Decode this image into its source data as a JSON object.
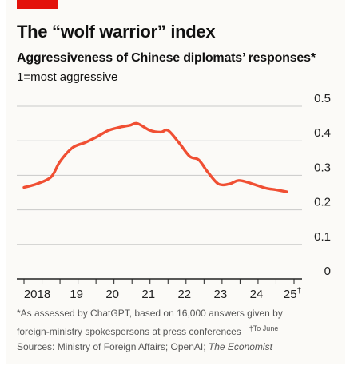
{
  "header": {
    "title": "The “wolf warrior” index",
    "subtitle": "Aggressiveness of Chinese diplomats’ responses*",
    "scale_note": "1=most aggressive"
  },
  "footnotes": {
    "line1": "*As assessed by ChatGPT, based on 16,000 answers given by",
    "line2_a": "foreign-ministry spokespersons at press conferences",
    "line2_b": "†To June",
    "sources_prefix": "Sources: Ministry of Foreign Affairs; OpenAI; ",
    "sources_italic": "The Economist"
  },
  "colors": {
    "accent": "#e3120b",
    "line": "#f04f33",
    "grid": "#c9c9c9",
    "axis": "#222222"
  },
  "chart_data": {
    "type": "line",
    "title": "The “wolf warrior” index",
    "subtitle": "Aggressiveness of Chinese diplomats’ responses*",
    "ylabel": "1=most aggressive",
    "xlabel": "",
    "xlim": [
      2018,
      2025.5
    ],
    "ylim": [
      0,
      0.5
    ],
    "yticks": [
      0,
      0.1,
      0.2,
      0.3,
      0.4,
      0.5
    ],
    "ytick_labels": [
      "0",
      "0.1",
      "0.2",
      "0.3",
      "0.4",
      "0.5"
    ],
    "xticks": [
      2018,
      2019,
      2020,
      2021,
      2022,
      2023,
      2024,
      2025
    ],
    "xtick_labels": [
      "2018",
      "19",
      "20",
      "21",
      "22",
      "23",
      "24",
      "25†"
    ],
    "grid": true,
    "x": [
      2018.0,
      2018.35,
      2018.75,
      2019.0,
      2019.35,
      2019.7,
      2020.0,
      2020.35,
      2020.7,
      2020.95,
      2021.15,
      2021.5,
      2021.8,
      2022.0,
      2022.3,
      2022.6,
      2022.85,
      2023.1,
      2023.4,
      2023.7,
      2023.95,
      2024.2,
      2024.5,
      2024.75,
      2025.0,
      2025.3
    ],
    "y": [
      0.265,
      0.275,
      0.295,
      0.34,
      0.38,
      0.395,
      0.41,
      0.43,
      0.44,
      0.445,
      0.45,
      0.43,
      0.425,
      0.43,
      0.395,
      0.355,
      0.345,
      0.31,
      0.275,
      0.275,
      0.285,
      0.28,
      0.27,
      0.262,
      0.258,
      0.252
    ]
  }
}
